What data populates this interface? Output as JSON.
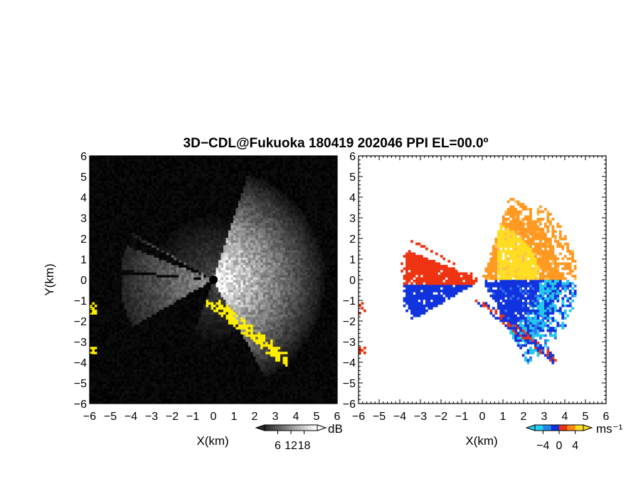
{
  "title": "3D−CDL@Fukuoka 180419 202046 PPI EL=00.0º",
  "chart_data": [
    {
      "type": "heatmap",
      "name": "reflectivity",
      "xlabel": "X(km)",
      "ylabel": "Y(km)",
      "xlim": [
        -6,
        6
      ],
      "ylim": [
        -6,
        6
      ],
      "xticks": [
        "−6",
        "−5",
        "−4",
        "−3",
        "−2",
        "−1",
        "0",
        "1",
        "2",
        "3",
        "4",
        "5",
        "6"
      ],
      "yticks": [
        "6",
        "5",
        "4",
        "3",
        "2",
        "1",
        "0",
        "−1",
        "−2",
        "−3",
        "−4",
        "−5",
        "−6"
      ],
      "colorbar": {
        "unit": "dB",
        "ticks": [
          "6",
          "12",
          "18"
        ],
        "range": [
          0,
          24
        ]
      }
    },
    {
      "type": "heatmap",
      "name": "velocity",
      "xlabel": "X(km)",
      "xlim": [
        -6,
        6
      ],
      "ylim": [
        -6,
        6
      ],
      "xticks": [
        "−6",
        "−5",
        "−4",
        "−3",
        "−2",
        "−1",
        "0",
        "1",
        "2",
        "3",
        "4",
        "5",
        "6"
      ],
      "yticks": [
        "6",
        "5",
        "4",
        "3",
        "2",
        "1",
        "0",
        "−1",
        "−2",
        "−3",
        "−4",
        "−5",
        "−6"
      ],
      "colorbar": {
        "unit": "ms⁻¹",
        "ticks": [
          "−4",
          "0",
          "4"
        ],
        "range": [
          -6,
          6
        ]
      }
    }
  ],
  "colors": {
    "background": "#000000",
    "flag": "#ffee00",
    "negative": "#1133dd",
    "positive": "#ee3311",
    "bright_positive": "#ffdd22",
    "cyan": "#22c8ee"
  }
}
